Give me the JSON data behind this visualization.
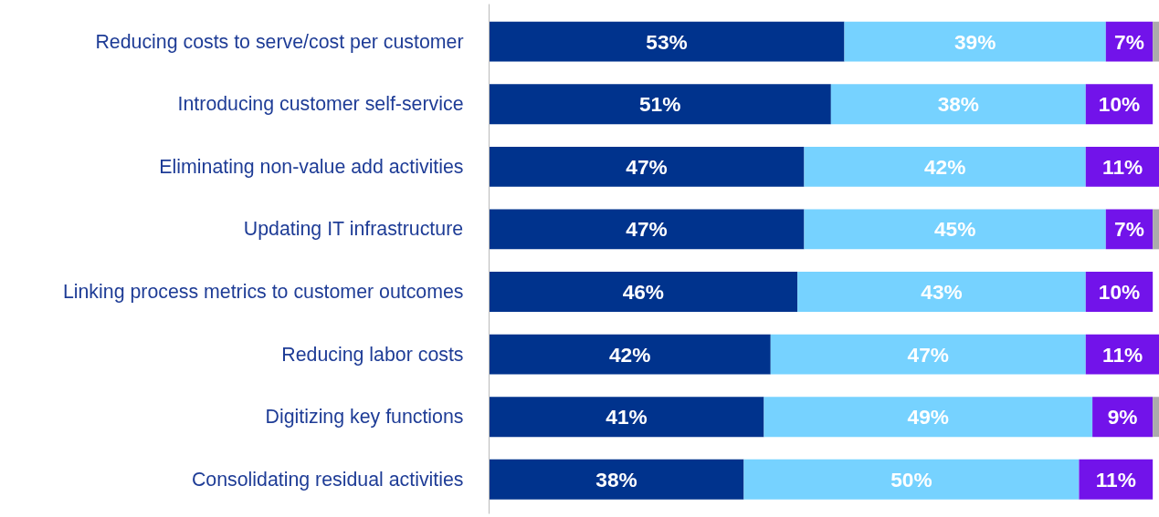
{
  "chart_data": {
    "type": "bar",
    "orientation": "horizontal",
    "stacked": true,
    "categories": [
      "Reducing costs to serve/cost per customer",
      "Introducing customer self-service",
      "Eliminating non-value add activities",
      "Updating IT infrastructure",
      "Linking process metrics to customer outcomes",
      "Reducing labor costs",
      "Digitizing key functions",
      "Consolidating residual activities"
    ],
    "xlim": [
      0,
      100
    ],
    "tick_labels": "y",
    "grid": false,
    "series": [
      {
        "color": "#00338d",
        "values": [
          53,
          51,
          47,
          47,
          46,
          42,
          41,
          38
        ],
        "value_labels": [
          "53%",
          "51%",
          "47%",
          "47%",
          "46%",
          "42%",
          "41%",
          "38%"
        ]
      },
      {
        "color": "#76d2ff",
        "values": [
          39,
          38,
          42,
          45,
          43,
          47,
          49,
          50
        ],
        "value_labels": [
          "39%",
          "38%",
          "42%",
          "45%",
          "43%",
          "47%",
          "49%",
          "50%"
        ]
      },
      {
        "color": "#7213ea",
        "values": [
          7,
          10,
          11,
          7,
          10,
          11,
          9,
          11
        ],
        "value_labels": [
          "7%",
          "10%",
          "11%",
          "7%",
          "10%",
          "11%",
          "9%",
          "11%"
        ]
      },
      {
        "color": "#ababab",
        "values": [
          1,
          null,
          null,
          1,
          null,
          null,
          1,
          null
        ]
      }
    ]
  }
}
